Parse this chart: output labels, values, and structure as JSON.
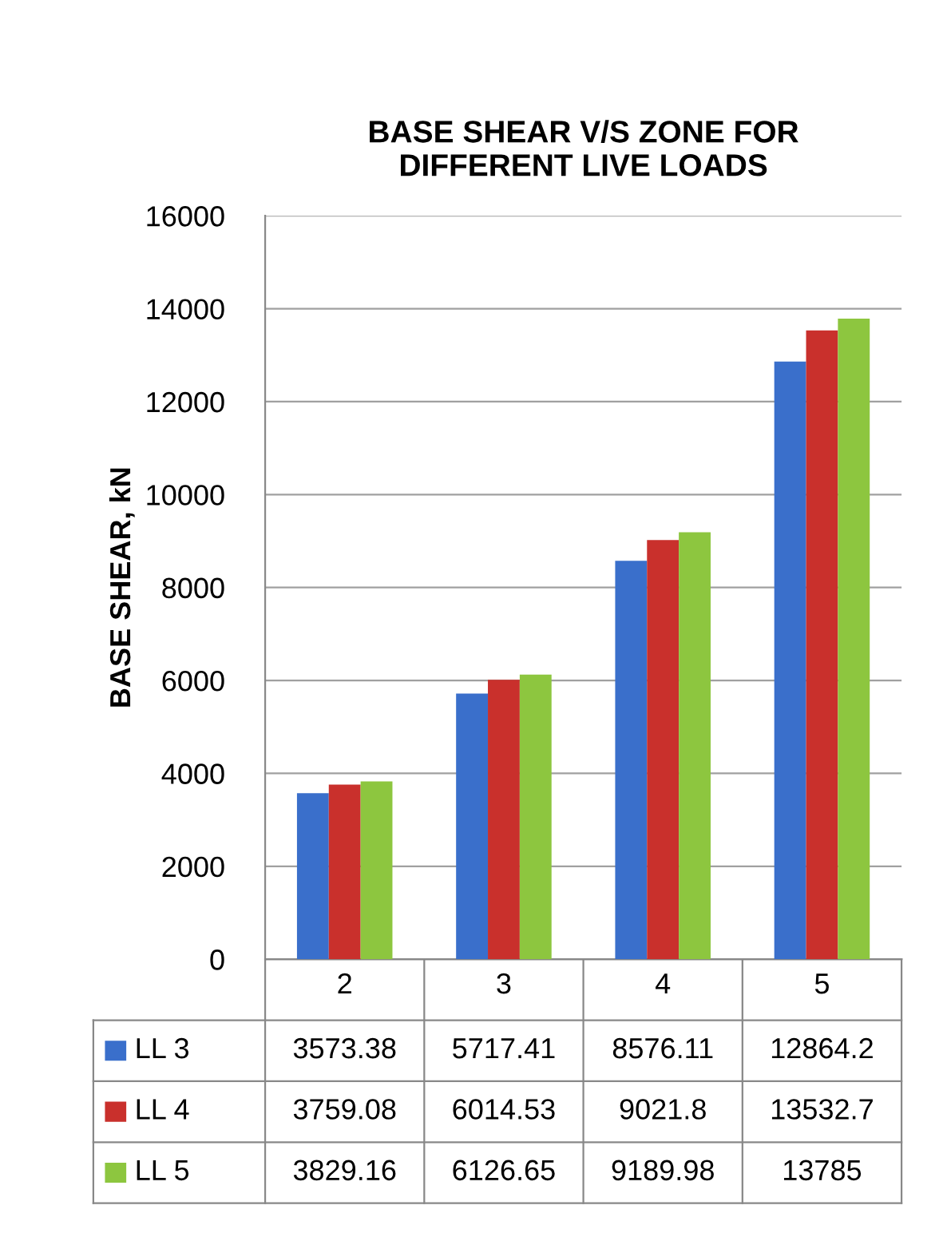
{
  "chart_data": {
    "type": "bar",
    "title": "BASE SHEAR V/S ZONE FOR\nDIFFERENT LIVE LOADS",
    "ylabel": "BASE SHEAR, kN",
    "categories": [
      "2",
      "3",
      "4",
      "5"
    ],
    "series": [
      {
        "name": "LL 3",
        "color": "#3a6fcb",
        "values": [
          3573.38,
          5717.41,
          8576.11,
          12864.2
        ]
      },
      {
        "name": "LL 4",
        "color": "#c9302c",
        "values": [
          3759.08,
          6014.53,
          9021.8,
          13532.7
        ]
      },
      {
        "name": "LL 5",
        "color": "#8dc63f",
        "values": [
          3829.16,
          6126.65,
          9189.98,
          13785
        ]
      }
    ],
    "ylim": [
      0,
      16000
    ],
    "yticks": [
      0,
      2000,
      4000,
      6000,
      8000,
      10000,
      12000,
      14000,
      16000
    ],
    "grid": "y",
    "data_labels": true,
    "legend": "bottom"
  }
}
